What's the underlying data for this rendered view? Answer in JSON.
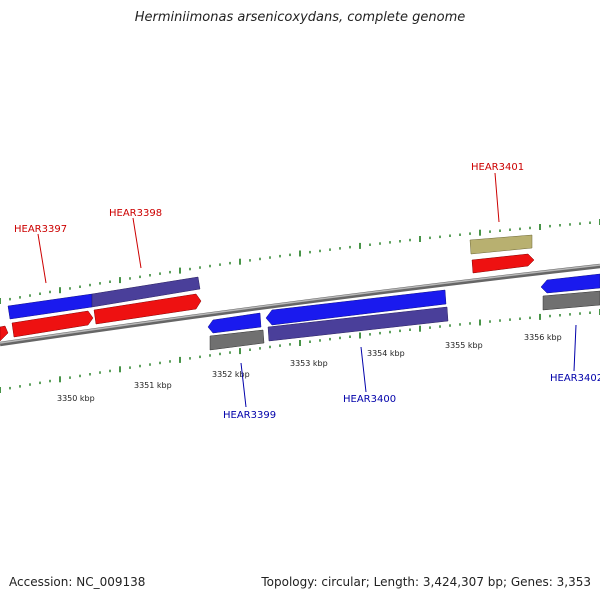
{
  "title": "Herminiimonas arsenicoxydans, complete genome",
  "footer": {
    "accession": "Accession: NC_009138",
    "topology": "Topology: circular; Length: 3,424,307 bp; Genes: 3,353"
  },
  "colors": {
    "forward_label": "#cc0000",
    "reverse_label": "#0000aa",
    "backbone": "#8a8a8a",
    "ticks": "#1a7a1a",
    "gene_blue": "#1a1aee",
    "gene_red": "#ee1111",
    "gene_purple": "#4a3f9a",
    "gene_gray": "#707070",
    "gene_khaki": "#b8b070"
  },
  "scale_labels": [
    "3350 kbp",
    "3351 kbp",
    "3352 kbp",
    "3353 kbp",
    "3354 kbp",
    "3355 kbp",
    "3356 kbp"
  ],
  "gene_labels": {
    "hear3397": "HEAR3397",
    "hear3398": "HEAR3398",
    "hear3399": "HEAR3399",
    "hear3400": "HEAR3400",
    "hear3401": "HEAR3401",
    "hear3402": "HEAR3402"
  }
}
